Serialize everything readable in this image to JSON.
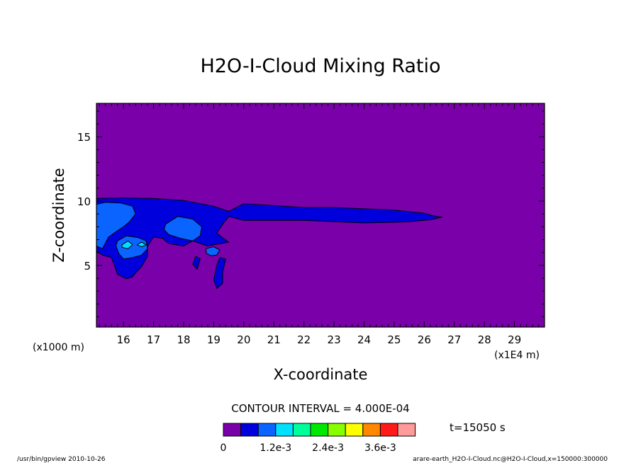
{
  "chart_data": {
    "type": "heatmap",
    "title": "H2O-I-Cloud Mixing Ratio",
    "xlabel": "X-coordinate",
    "ylabel": "Z-coordinate",
    "x_scale_label": "(x1E4 m)",
    "y_scale_label": "(x1000 m)",
    "xlim": [
      15.1,
      30.0
    ],
    "ylim": [
      0.2,
      17.6
    ],
    "x_ticks": [
      16,
      17,
      18,
      19,
      20,
      21,
      22,
      23,
      24,
      25,
      26,
      27,
      28,
      29
    ],
    "y_ticks": [
      5,
      10,
      15
    ],
    "contour_interval_text": "CONTOUR INTERVAL = 4.000E-04",
    "time_text": "t=15050 s",
    "colorbar": {
      "colors": [
        "#7a00aa",
        "#0000dd",
        "#0a64ff",
        "#00e0ff",
        "#00ff9a",
        "#00e800",
        "#88ff00",
        "#ffff00",
        "#ff8800",
        "#ff1a1a",
        "#ff9a9a"
      ],
      "labels": [
        {
          "text": "0",
          "position": 0
        },
        {
          "text": "1.2e-3",
          "position": 3
        },
        {
          "text": "2.4e-3",
          "position": 6
        },
        {
          "text": "3.6e-3",
          "position": 9
        }
      ]
    },
    "contours": [
      {
        "level": "1",
        "color": "#0000dd",
        "points": [
          [
            15.1,
            10.2
          ],
          [
            16.0,
            10.25
          ],
          [
            17.0,
            10.2
          ],
          [
            18.0,
            10.05
          ],
          [
            19.0,
            9.6
          ],
          [
            19.5,
            9.2
          ],
          [
            20.0,
            9.8
          ],
          [
            21.0,
            9.65
          ],
          [
            22.0,
            9.5
          ],
          [
            23.0,
            9.5
          ],
          [
            24.0,
            9.4
          ],
          [
            25.0,
            9.3
          ],
          [
            26.0,
            9.05
          ],
          [
            26.3,
            8.85
          ],
          [
            26.6,
            8.75
          ],
          [
            26.2,
            8.55
          ],
          [
            25.5,
            8.4
          ],
          [
            25.0,
            8.35
          ],
          [
            24.0,
            8.3
          ],
          [
            23.0,
            8.4
          ],
          [
            22.0,
            8.5
          ],
          [
            21.0,
            8.5
          ],
          [
            20.0,
            8.5
          ],
          [
            19.5,
            8.8
          ],
          [
            19.3,
            8.2
          ],
          [
            19.1,
            7.5
          ],
          [
            19.5,
            6.8
          ],
          [
            19.0,
            6.6
          ],
          [
            18.8,
            6.5
          ],
          [
            18.3,
            6.9
          ],
          [
            18.0,
            6.5
          ],
          [
            17.5,
            6.7
          ],
          [
            17.3,
            7.1
          ],
          [
            17.0,
            7.2
          ],
          [
            16.8,
            6.5
          ],
          [
            16.8,
            5.7
          ],
          [
            16.6,
            4.9
          ],
          [
            16.4,
            4.4
          ],
          [
            16.3,
            4.1
          ],
          [
            16.1,
            3.95
          ],
          [
            15.8,
            4.3
          ],
          [
            15.7,
            5.0
          ],
          [
            15.6,
            5.6
          ],
          [
            15.3,
            5.8
          ],
          [
            15.1,
            6.1
          ]
        ]
      },
      {
        "level": "1",
        "color": "#0000dd",
        "points": [
          [
            19.2,
            5.6
          ],
          [
            19.4,
            5.5
          ],
          [
            19.3,
            4.5
          ],
          [
            19.3,
            3.6
          ],
          [
            19.1,
            3.2
          ],
          [
            19.0,
            3.9
          ],
          [
            19.1,
            5.0
          ]
        ]
      },
      {
        "level": "1",
        "color": "#0000dd",
        "points": [
          [
            18.4,
            5.7
          ],
          [
            18.55,
            5.5
          ],
          [
            18.5,
            5.1
          ],
          [
            18.45,
            4.7
          ],
          [
            18.3,
            5.1
          ]
        ]
      },
      {
        "level": "2",
        "color": "#0a64ff",
        "points": [
          [
            15.1,
            9.75
          ],
          [
            15.4,
            9.9
          ],
          [
            15.9,
            9.85
          ],
          [
            16.3,
            9.6
          ],
          [
            16.4,
            9.0
          ],
          [
            16.2,
            8.4
          ],
          [
            16.0,
            8.0
          ],
          [
            15.8,
            7.7
          ],
          [
            15.5,
            7.2
          ],
          [
            15.3,
            6.3
          ],
          [
            15.1,
            6.5
          ]
        ]
      },
      {
        "level": "2",
        "color": "#0a64ff",
        "points": [
          [
            15.8,
            6.9
          ],
          [
            16.1,
            7.3
          ],
          [
            16.5,
            7.15
          ],
          [
            16.75,
            6.9
          ],
          [
            16.8,
            6.3
          ],
          [
            16.6,
            5.8
          ],
          [
            16.3,
            5.6
          ],
          [
            16.0,
            5.5
          ],
          [
            15.85,
            5.9
          ],
          [
            15.75,
            6.5
          ]
        ]
      },
      {
        "level": "2",
        "color": "#0a64ff",
        "points": [
          [
            17.4,
            8.2
          ],
          [
            17.8,
            8.8
          ],
          [
            18.3,
            8.6
          ],
          [
            18.6,
            8.0
          ],
          [
            18.55,
            7.3
          ],
          [
            18.3,
            6.9
          ],
          [
            17.9,
            7.1
          ],
          [
            17.5,
            7.4
          ],
          [
            17.35,
            7.8
          ]
        ]
      },
      {
        "level": "2",
        "color": "#0a64ff",
        "points": [
          [
            18.75,
            6.3
          ],
          [
            19.0,
            6.45
          ],
          [
            19.2,
            6.2
          ],
          [
            19.1,
            5.8
          ],
          [
            18.9,
            5.75
          ],
          [
            18.75,
            5.95
          ]
        ]
      },
      {
        "level": "3",
        "color": "#00e0ff",
        "points": [
          [
            15.95,
            6.6
          ],
          [
            16.15,
            6.9
          ],
          [
            16.3,
            6.6
          ],
          [
            16.15,
            6.3
          ],
          [
            15.95,
            6.4
          ]
        ]
      },
      {
        "level": "3",
        "color": "#00e0ff",
        "points": [
          [
            16.45,
            6.6
          ],
          [
            16.6,
            6.8
          ],
          [
            16.75,
            6.6
          ],
          [
            16.6,
            6.45
          ]
        ]
      }
    ]
  },
  "footer": {
    "left": "/usr/bin/gpview  2010-10-26",
    "right": "arare-earth_H2O-I-Cloud.nc@H2O-I-Cloud,x=150000:300000"
  }
}
